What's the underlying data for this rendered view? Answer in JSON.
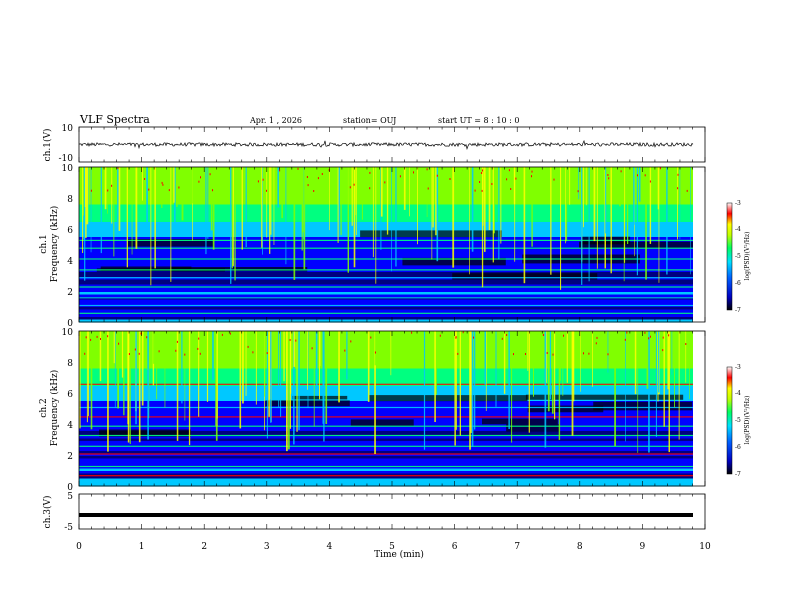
{
  "header": {
    "title": "VLF Spectra",
    "date": "Apr. 1  , 2026",
    "station": "station= OUJ",
    "start": "start  UT  =   8  : 10 : 0"
  },
  "chart_data": [
    {
      "type": "line",
      "panel": "ch1 waveform",
      "ylabel": "ch.1(V)",
      "ylim": [
        -10,
        10
      ],
      "yticks": [
        "10",
        "-10"
      ],
      "xlim": [
        0,
        10
      ],
      "baseline": 0,
      "noise_amplitude": 1.0
    },
    {
      "type": "heatmap",
      "panel": "ch1 spectrogram",
      "ylabel": "ch.1\nFrequency (kHz)",
      "ylim": [
        0,
        10
      ],
      "yticks": [
        "10",
        "8",
        "6",
        "4",
        "2",
        "0"
      ],
      "xlim": [
        0,
        10
      ],
      "colorbar": {
        "ticks": [
          "-3",
          "-4",
          "-5",
          "-6",
          "-7"
        ],
        "label": "log(PSD)(V²/Hz)",
        "range": [
          -7,
          -3
        ]
      },
      "spectral_lines_khz": [
        0.6,
        1.1,
        1.6,
        2.3,
        2.9,
        3.4,
        4.1,
        4.8,
        5.3,
        6.8
      ]
    },
    {
      "type": "heatmap",
      "panel": "ch2 spectrogram",
      "ylabel": "ch.2\nFrequency (kHz)",
      "ylim": [
        0,
        10
      ],
      "yticks": [
        "10",
        "8",
        "6",
        "4",
        "2",
        "0"
      ],
      "xlim": [
        0,
        10
      ],
      "colorbar": {
        "ticks": [
          "-3",
          "-4",
          "-5",
          "-6",
          "-7"
        ],
        "label": "log(PSD)(V²/Hz)",
        "range": [
          -7,
          -3
        ]
      },
      "spectral_lines_khz": [
        0.7,
        1.3,
        2.1,
        2.6,
        3.3,
        3.9,
        4.5,
        5.1,
        6.6,
        7.1
      ]
    },
    {
      "type": "line",
      "panel": "ch3 waveform",
      "ylabel": "ch.3(V)",
      "ylim": [
        -5,
        5
      ],
      "yticks": [
        "5",
        "-5"
      ],
      "xlim": [
        0,
        10
      ],
      "baseline": -1
    }
  ],
  "x_axis": {
    "label": "Time (min)",
    "ticks": [
      "0",
      "1",
      "2",
      "3",
      "4",
      "5",
      "6",
      "7",
      "8",
      "9",
      "10"
    ]
  },
  "colors": {
    "colormap": [
      "#000000",
      "#000080",
      "#0000ff",
      "#00c8ff",
      "#00ff80",
      "#80ff00",
      "#ffff00",
      "#ff0000",
      "#ff8080",
      "#ffffff"
    ]
  }
}
